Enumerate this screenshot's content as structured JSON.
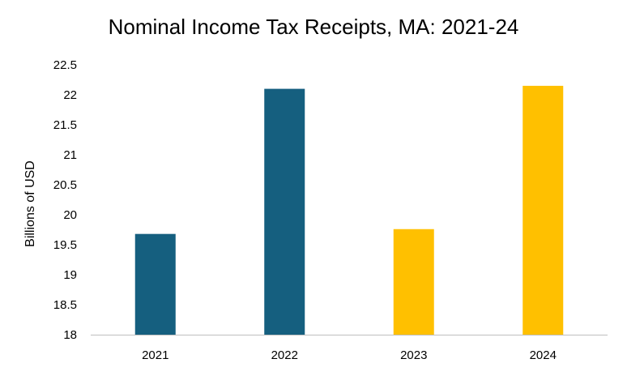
{
  "chart_data": {
    "type": "bar",
    "title": "Nominal Income Tax Receipts, MA: 2021-24",
    "xlabel": "",
    "ylabel": "Billions of USD",
    "categories": [
      "2021",
      "2022",
      "2023",
      "2024"
    ],
    "values": [
      19.68,
      22.1,
      19.76,
      22.15
    ],
    "bar_colors": [
      "#155F7F",
      "#155F7F",
      "#FFC000",
      "#FFC000"
    ],
    "ylim": [
      18,
      22.5
    ],
    "yticks": [
      18,
      18.5,
      19,
      19.5,
      20,
      20.5,
      21,
      21.5,
      22,
      22.5
    ],
    "grid": false,
    "legend": "none"
  }
}
